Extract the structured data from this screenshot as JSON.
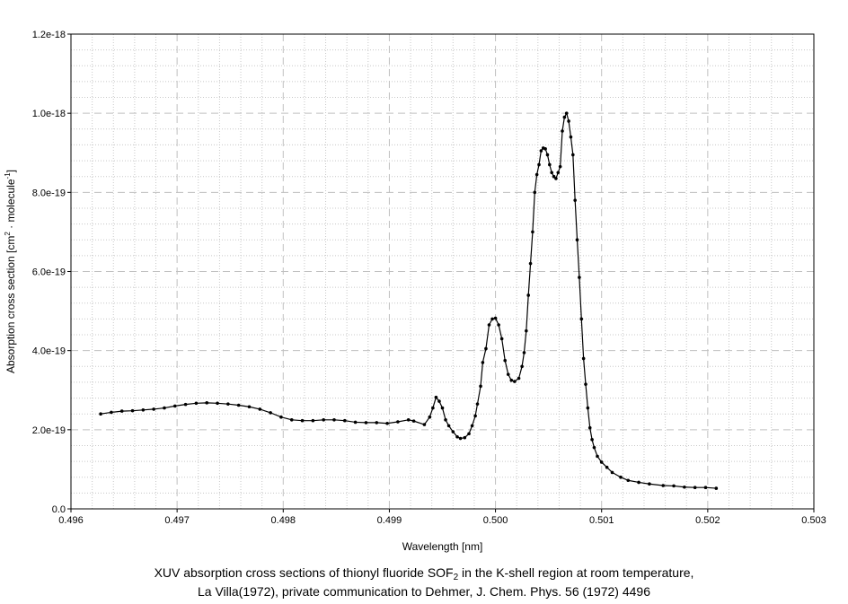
{
  "caption": {
    "line1_prefix": "XUV absorption cross sections of thionyl fluoride SOF",
    "line1_subscript": "2",
    "line1_suffix": " in the K-shell region at room temperature,",
    "line2": "La Villa(1972), private communication to Dehmer, J. Chem. Phys. 56 (1972) 4496"
  },
  "colors": {
    "line": "#000000",
    "marker": "#000000",
    "major_grid": "#c0c0c0",
    "minor_grid": "#c8c8c8",
    "frame": "#000000",
    "background": "#ffffff"
  },
  "chart_data": {
    "type": "line",
    "title": "",
    "xlabel": "Wavelength [nm]",
    "ylabel_prefix": "Absorption cross section [cm",
    "ylabel_sup1": "2",
    "ylabel_mid": " · molecule",
    "ylabel_sup2": "-1",
    "ylabel_suffix": "]",
    "xlim": [
      0.496,
      0.503
    ],
    "ylim": [
      0.0,
      1.2e-18
    ],
    "x_ticks": [
      0.496,
      0.497,
      0.498,
      0.499,
      0.5,
      0.501,
      0.502,
      0.503
    ],
    "x_tick_labels": [
      "0.496",
      "0.497",
      "0.498",
      "0.499",
      "0.500",
      "0.501",
      "0.502",
      "0.503"
    ],
    "y_ticks": [
      0.0,
      2e-19,
      4e-19,
      6e-19,
      8e-19,
      1e-18,
      1.2e-18
    ],
    "y_tick_labels": [
      "0.0",
      "2.0e-19",
      "4.0e-19",
      "6.0e-19",
      "8.0e-19",
      "1.0e-18",
      "1.2e-18"
    ],
    "grid": "on",
    "legend": "none",
    "series": [
      {
        "x": [
          0.49628,
          0.49638,
          0.49648,
          0.49658,
          0.49668,
          0.49678,
          0.49688,
          0.49698,
          0.49708,
          0.49718,
          0.49728,
          0.49738,
          0.49748,
          0.49758,
          0.49768,
          0.49778,
          0.49788,
          0.49798,
          0.49808,
          0.49818,
          0.49828,
          0.49838,
          0.49848,
          0.49858,
          0.49868,
          0.49878,
          0.49888,
          0.49898,
          0.49908,
          0.49918,
          0.49923,
          0.49933,
          0.49938,
          0.49941,
          0.49944,
          0.49947,
          0.4995,
          0.49953,
          0.49956,
          0.4996,
          0.49964,
          0.49967,
          0.49971,
          0.49975,
          0.49978,
          0.49981,
          0.49983,
          0.49986,
          0.49988,
          0.49991,
          0.49994,
          0.49997,
          0.5,
          0.50003,
          0.50006,
          0.50009,
          0.50012,
          0.50015,
          0.50018,
          0.50022,
          0.50025,
          0.50027,
          0.50029,
          0.50031,
          0.50033,
          0.50035,
          0.50037,
          0.50039,
          0.50041,
          0.50043,
          0.50045,
          0.50047,
          0.50049,
          0.50051,
          0.50053,
          0.50055,
          0.50057,
          0.50059,
          0.50061,
          0.50063,
          0.50065,
          0.50067,
          0.50069,
          0.50071,
          0.50073,
          0.50075,
          0.50077,
          0.50079,
          0.50081,
          0.50083,
          0.50085,
          0.50087,
          0.50089,
          0.50091,
          0.50093,
          0.50096,
          0.501,
          0.50105,
          0.5011,
          0.50118,
          0.50125,
          0.50135,
          0.50145,
          0.50158,
          0.50168,
          0.50178,
          0.50188,
          0.50198,
          0.50208
        ],
        "y": [
          2.4e-19,
          2.44e-19,
          2.47e-19,
          2.48e-19,
          2.5e-19,
          2.52e-19,
          2.55e-19,
          2.6e-19,
          2.64e-19,
          2.67e-19,
          2.68e-19,
          2.67e-19,
          2.65e-19,
          2.62e-19,
          2.58e-19,
          2.52e-19,
          2.43e-19,
          2.32e-19,
          2.25e-19,
          2.23e-19,
          2.23e-19,
          2.25e-19,
          2.25e-19,
          2.23e-19,
          2.19e-19,
          2.18e-19,
          2.18e-19,
          2.16e-19,
          2.2e-19,
          2.25e-19,
          2.22e-19,
          2.13e-19,
          2.32e-19,
          2.55e-19,
          2.82e-19,
          2.72e-19,
          2.55e-19,
          2.25e-19,
          2.1e-19,
          1.95e-19,
          1.82e-19,
          1.78e-19,
          1.8e-19,
          1.9e-19,
          2.1e-19,
          2.35e-19,
          2.65e-19,
          3.1e-19,
          3.7e-19,
          4.05e-19,
          4.65e-19,
          4.8e-19,
          4.82e-19,
          4.65e-19,
          4.3e-19,
          3.75e-19,
          3.4e-19,
          3.25e-19,
          3.22e-19,
          3.3e-19,
          3.6e-19,
          3.95e-19,
          4.5e-19,
          5.4e-19,
          6.2e-19,
          7e-19,
          8e-19,
          8.45e-19,
          8.7e-19,
          9.05e-19,
          9.12e-19,
          9.1e-19,
          8.95e-19,
          8.7e-19,
          8.5e-19,
          8.4e-19,
          8.35e-19,
          8.5e-19,
          8.65e-19,
          9.55e-19,
          9.9e-19,
          1e-18,
          9.8e-19,
          9.4e-19,
          8.95e-19,
          7.8e-19,
          6.8e-19,
          5.85e-19,
          4.8e-19,
          3.8e-19,
          3.15e-19,
          2.55e-19,
          2.05e-19,
          1.75e-19,
          1.55e-19,
          1.33e-19,
          1.18e-19,
          1.05e-19,
          9.2e-20,
          8e-20,
          7.2e-20,
          6.7e-20,
          6.3e-20,
          5.9e-20,
          5.8e-20,
          5.5e-20,
          5.4e-20,
          5.4e-20,
          5.2e-20
        ]
      }
    ]
  }
}
